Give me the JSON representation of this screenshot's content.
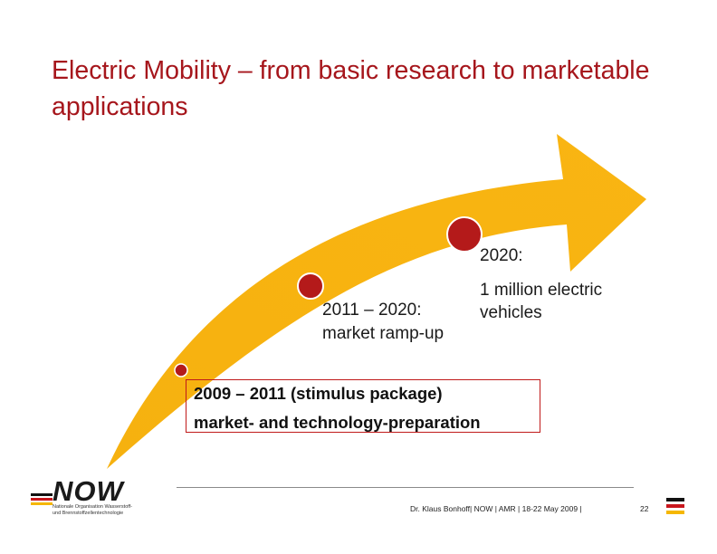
{
  "title": "Electric Mobility – from basic research to marketable applications",
  "milestones": {
    "m2009": {
      "line1": "2009 – 2011 (stimulus package)",
      "line2": "market- and technology-preparation"
    },
    "m2011": {
      "line1": "2011 – 2020:",
      "line2": "market ramp-up"
    },
    "m2020": {
      "line1": "2020:",
      "line2": "1 million electric",
      "line3": "vehicles"
    }
  },
  "logo": {
    "word": "NOW",
    "sub1": "Nationale Organisation Wasserstoff-",
    "sub2": "und Brennstoffzellentechnologie"
  },
  "footer": {
    "text": "Dr. Klaus Bonhoff| NOW  | AMR |  18-22 May 2009 |",
    "page": "22"
  },
  "colors": {
    "arrow": "#f8b413",
    "milestone": "#b41a1a",
    "title": "#a6161c"
  }
}
